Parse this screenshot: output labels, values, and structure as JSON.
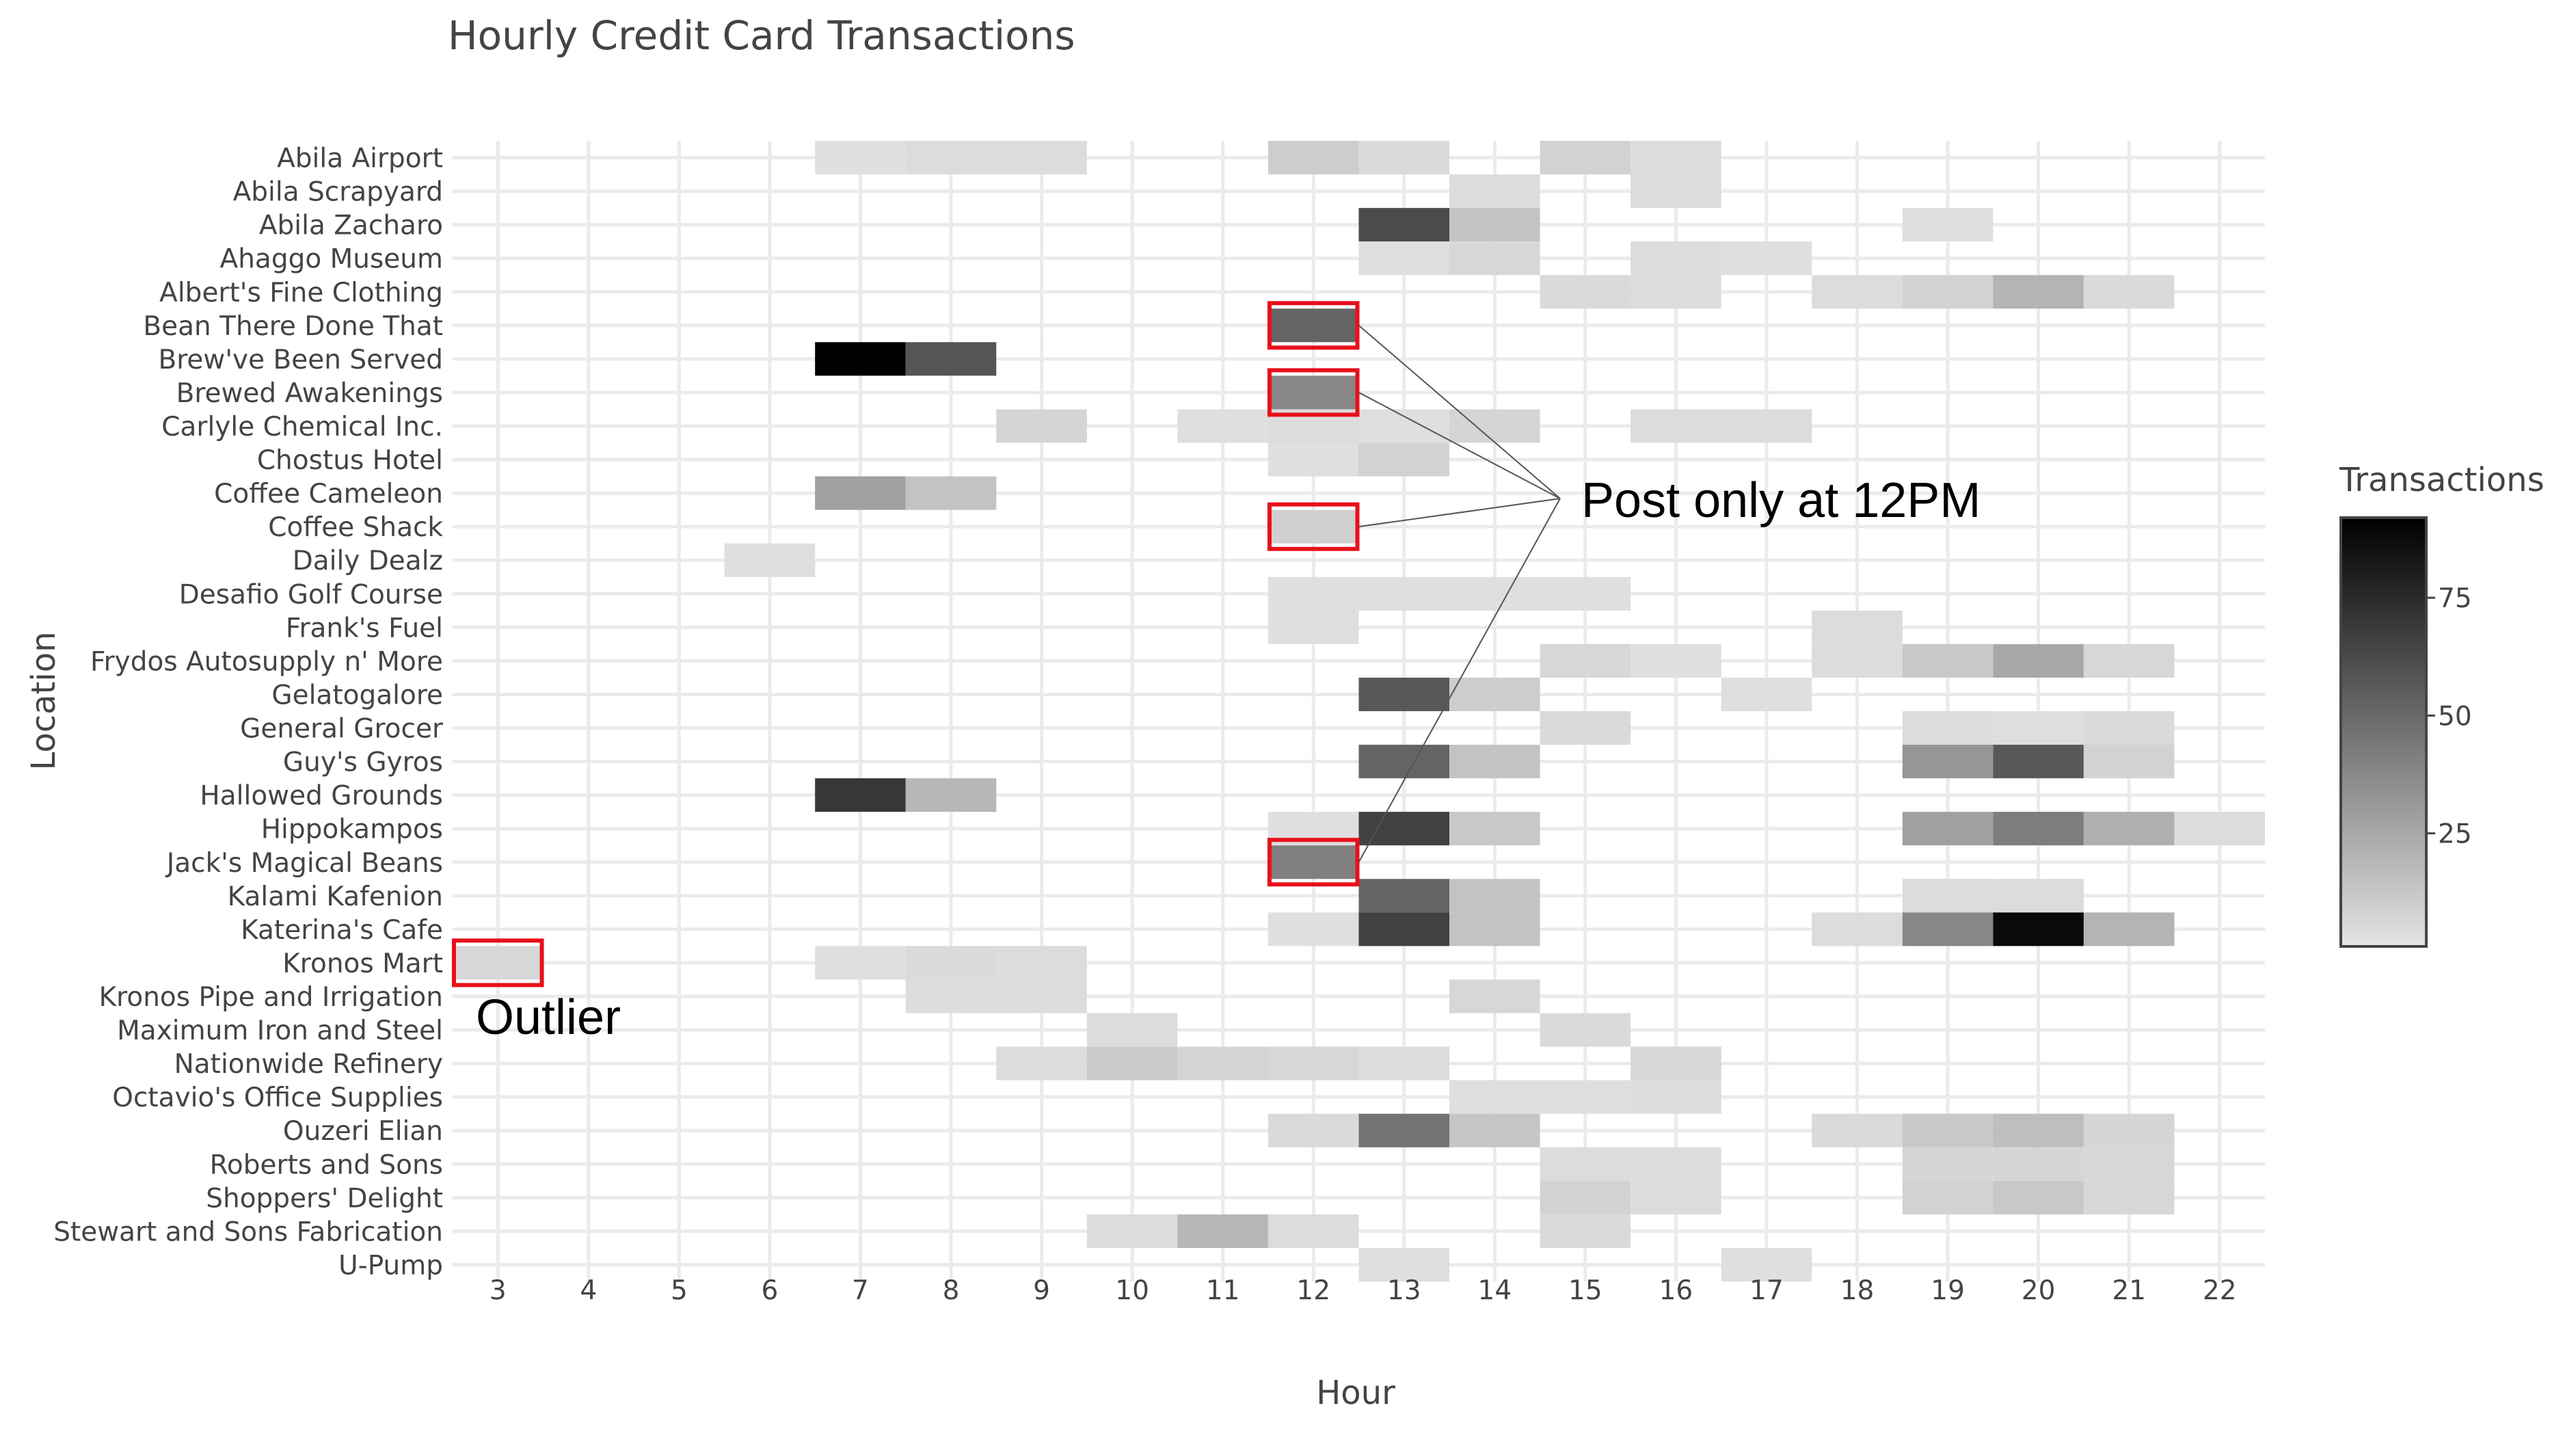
{
  "chart_data": {
    "type": "heatmap",
    "title": "Hourly Credit Card Transactions",
    "xlabel": "Hour",
    "ylabel": "Location",
    "x": [
      3,
      4,
      5,
      6,
      7,
      8,
      9,
      10,
      11,
      12,
      13,
      14,
      15,
      16,
      17,
      18,
      19,
      20,
      21,
      22
    ],
    "y": [
      "Abila Airport",
      "Abila Scrapyard",
      "Abila Zacharo",
      "Ahaggo Museum",
      "Albert's Fine Clothing",
      "Bean There Done That",
      "Brew've Been Served",
      "Brewed Awakenings",
      "Carlyle Chemical Inc.",
      "Chostus Hotel",
      "Coffee Cameleon",
      "Coffee Shack",
      "Daily Dealz",
      "Desafio Golf Course",
      "Frank's Fuel",
      "Frydos Autosupply n' More",
      "Gelatogalore",
      "General Grocer",
      "Guy's Gyros",
      "Hallowed Grounds",
      "Hippokampos",
      "Jack's Magical Beans",
      "Kalami Kafenion",
      "Katerina's Cafe",
      "Kronos Mart",
      "Kronos Pipe and Irrigation",
      "Maximum Iron and Steel",
      "Nationwide Refinery",
      "Octavio's Office Supplies",
      "Ouzeri Elian",
      "Roberts and Sons",
      "Shoppers' Delight",
      "Stewart and Sons Fabrication",
      "U-Pump"
    ],
    "cells": [
      [
        "Abila Airport",
        7,
        3
      ],
      [
        "Abila Airport",
        8,
        4
      ],
      [
        "Abila Airport",
        9,
        4
      ],
      [
        "Abila Airport",
        12,
        10
      ],
      [
        "Abila Airport",
        13,
        5
      ],
      [
        "Abila Airport",
        15,
        8
      ],
      [
        "Abila Airport",
        16,
        4
      ],
      [
        "Abila Scrapyard",
        14,
        4
      ],
      [
        "Abila Scrapyard",
        16,
        4
      ],
      [
        "Abila Zacharo",
        13,
        62
      ],
      [
        "Abila Zacharo",
        14,
        14
      ],
      [
        "Abila Zacharo",
        19,
        3
      ],
      [
        "Ahaggo Museum",
        13,
        3
      ],
      [
        "Ahaggo Museum",
        14,
        6
      ],
      [
        "Ahaggo Museum",
        16,
        4
      ],
      [
        "Ahaggo Museum",
        17,
        3
      ],
      [
        "Albert's Fine Clothing",
        15,
        5
      ],
      [
        "Albert's Fine Clothing",
        16,
        4
      ],
      [
        "Albert's Fine Clothing",
        18,
        4
      ],
      [
        "Albert's Fine Clothing",
        19,
        8
      ],
      [
        "Albert's Fine Clothing",
        20,
        20
      ],
      [
        "Albert's Fine Clothing",
        21,
        5
      ],
      [
        "Bean There Done That",
        12,
        52
      ],
      [
        "Brew've Been Served",
        7,
        92
      ],
      [
        "Brew've Been Served",
        8,
        58
      ],
      [
        "Brewed Awakenings",
        12,
        38
      ],
      [
        "Carlyle Chemical Inc.",
        9,
        7
      ],
      [
        "Carlyle Chemical Inc.",
        11,
        3
      ],
      [
        "Carlyle Chemical Inc.",
        12,
        4
      ],
      [
        "Carlyle Chemical Inc.",
        13,
        3
      ],
      [
        "Carlyle Chemical Inc.",
        14,
        7
      ],
      [
        "Carlyle Chemical Inc.",
        16,
        4
      ],
      [
        "Carlyle Chemical Inc.",
        17,
        4
      ],
      [
        "Chostus Hotel",
        12,
        3
      ],
      [
        "Chostus Hotel",
        13,
        8
      ],
      [
        "Coffee Cameleon",
        7,
        28
      ],
      [
        "Coffee Cameleon",
        8,
        14
      ],
      [
        "Coffee Shack",
        12,
        9
      ],
      [
        "Daily Dealz",
        6,
        3
      ],
      [
        "Desafio Golf Course",
        12,
        3
      ],
      [
        "Desafio Golf Course",
        13,
        3
      ],
      [
        "Desafio Golf Course",
        14,
        3
      ],
      [
        "Desafio Golf Course",
        15,
        3
      ],
      [
        "Frank's Fuel",
        12,
        3
      ],
      [
        "Frank's Fuel",
        18,
        4
      ],
      [
        "Frydos Autosupply n' More",
        15,
        6
      ],
      [
        "Frydos Autosupply n' More",
        16,
        3
      ],
      [
        "Frydos Autosupply n' More",
        18,
        4
      ],
      [
        "Frydos Autosupply n' More",
        19,
        12
      ],
      [
        "Frydos Autosupply n' More",
        20,
        25
      ],
      [
        "Frydos Autosupply n' More",
        21,
        6
      ],
      [
        "Gelatogalore",
        13,
        57
      ],
      [
        "Gelatogalore",
        14,
        10
      ],
      [
        "Gelatogalore",
        17,
        3
      ],
      [
        "General Grocer",
        15,
        5
      ],
      [
        "General Grocer",
        19,
        4
      ],
      [
        "General Grocer",
        20,
        3
      ],
      [
        "General Grocer",
        21,
        5
      ],
      [
        "Guy's Gyros",
        13,
        52
      ],
      [
        "Guy's Gyros",
        14,
        14
      ],
      [
        "Guy's Gyros",
        19,
        32
      ],
      [
        "Guy's Gyros",
        20,
        57
      ],
      [
        "Guy's Gyros",
        21,
        8
      ],
      [
        "Hallowed Grounds",
        7,
        70
      ],
      [
        "Hallowed Grounds",
        8,
        19
      ],
      [
        "Hippokampos",
        12,
        3
      ],
      [
        "Hippokampos",
        13,
        66
      ],
      [
        "Hippokampos",
        14,
        12
      ],
      [
        "Hippokampos",
        19,
        28
      ],
      [
        "Hippokampos",
        20,
        42
      ],
      [
        "Hippokampos",
        21,
        22
      ],
      [
        "Hippokampos",
        22,
        4
      ],
      [
        "Jack's Magical Beans",
        12,
        41
      ],
      [
        "Kalami Kafenion",
        13,
        52
      ],
      [
        "Kalami Kafenion",
        14,
        14
      ],
      [
        "Kalami Kafenion",
        19,
        4
      ],
      [
        "Kalami Kafenion",
        20,
        4
      ],
      [
        "Katerina's Cafe",
        12,
        3
      ],
      [
        "Katerina's Cafe",
        13,
        66
      ],
      [
        "Katerina's Cafe",
        14,
        14
      ],
      [
        "Katerina's Cafe",
        18,
        4
      ],
      [
        "Katerina's Cafe",
        19,
        38
      ],
      [
        "Katerina's Cafe",
        20,
        88
      ],
      [
        "Katerina's Cafe",
        21,
        20
      ],
      [
        "Kronos Mart",
        3,
        6
      ],
      [
        "Kronos Mart",
        7,
        3
      ],
      [
        "Kronos Mart",
        8,
        5
      ],
      [
        "Kronos Mart",
        9,
        4
      ],
      [
        "Kronos Pipe and Irrigation",
        8,
        4
      ],
      [
        "Kronos Pipe and Irrigation",
        9,
        4
      ],
      [
        "Kronos Pipe and Irrigation",
        14,
        6
      ],
      [
        "Maximum Iron and Steel",
        10,
        4
      ],
      [
        "Maximum Iron and Steel",
        15,
        5
      ],
      [
        "Nationwide Refinery",
        9,
        4
      ],
      [
        "Nationwide Refinery",
        10,
        11
      ],
      [
        "Nationwide Refinery",
        11,
        7
      ],
      [
        "Nationwide Refinery",
        12,
        6
      ],
      [
        "Nationwide Refinery",
        13,
        4
      ],
      [
        "Nationwide Refinery",
        16,
        6
      ],
      [
        "Octavio's Office Supplies",
        14,
        3
      ],
      [
        "Octavio's Office Supplies",
        15,
        3
      ],
      [
        "Octavio's Office Supplies",
        16,
        4
      ],
      [
        "Ouzeri Elian",
        12,
        5
      ],
      [
        "Ouzeri Elian",
        13,
        46
      ],
      [
        "Ouzeri Elian",
        14,
        13
      ],
      [
        "Ouzeri Elian",
        18,
        5
      ],
      [
        "Ouzeri Elian",
        19,
        12
      ],
      [
        "Ouzeri Elian",
        20,
        16
      ],
      [
        "Ouzeri Elian",
        21,
        7
      ],
      [
        "Roberts and Sons",
        15,
        4
      ],
      [
        "Roberts and Sons",
        16,
        4
      ],
      [
        "Roberts and Sons",
        19,
        7
      ],
      [
        "Roberts and Sons",
        20,
        7
      ],
      [
        "Roberts and Sons",
        21,
        6
      ],
      [
        "Shoppers' Delight",
        15,
        8
      ],
      [
        "Shoppers' Delight",
        16,
        4
      ],
      [
        "Shoppers' Delight",
        19,
        8
      ],
      [
        "Shoppers' Delight",
        20,
        12
      ],
      [
        "Shoppers' Delight",
        21,
        6
      ],
      [
        "Stewart and Sons Fabrication",
        10,
        4
      ],
      [
        "Stewart and Sons Fabrication",
        11,
        19
      ],
      [
        "Stewart and Sons Fabrication",
        12,
        4
      ],
      [
        "Stewart and Sons Fabrication",
        15,
        5
      ],
      [
        "U-Pump",
        13,
        3
      ],
      [
        "U-Pump",
        17,
        3
      ]
    ],
    "colorscale": {
      "title": "Transactions",
      "min": 1,
      "max": 92,
      "low_color": "#e4e4e6",
      "high_color": "#000000",
      "ticks": [
        25,
        50,
        75
      ]
    },
    "grid": true,
    "legend": "right",
    "highlights": [
      [
        "Bean There Done That",
        12
      ],
      [
        "Brewed Awakenings",
        12
      ],
      [
        "Coffee Shack",
        12
      ],
      [
        "Jack's Magical Beans",
        12
      ],
      [
        "Kronos Mart",
        3
      ]
    ],
    "annotations": [
      {
        "text": "Post only at 12PM",
        "targets": [
          "Bean There Done That",
          "Brewed Awakenings",
          "Coffee Shack",
          "Jack's Magical Beans"
        ]
      },
      {
        "text": "Outlier",
        "targets": [
          "Kronos Mart"
        ]
      }
    ],
    "highlight_color": "#e8101a"
  }
}
